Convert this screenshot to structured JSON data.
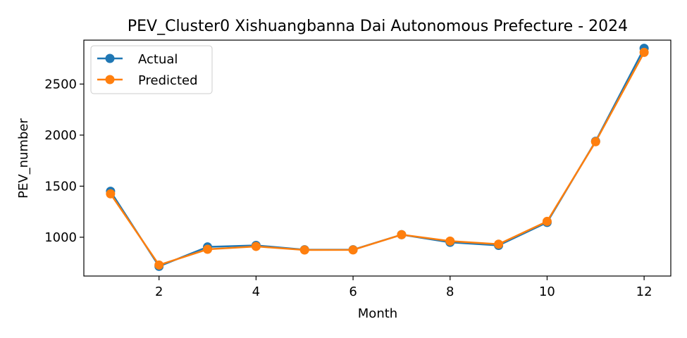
{
  "chart_data": {
    "type": "line",
    "title": "PEV_Cluster0 Xishuangbanna Dai Autonomous Prefecture - 2024",
    "xlabel": "Month",
    "ylabel": "PEV_number",
    "x": [
      1,
      2,
      3,
      4,
      5,
      6,
      7,
      8,
      9,
      10,
      11,
      12
    ],
    "xlim": [
      0.45,
      12.55
    ],
    "ylim": [
      620,
      2930
    ],
    "xticks": [
      2,
      4,
      6,
      8,
      10,
      12
    ],
    "yticks": [
      1000,
      1500,
      2000,
      2500
    ],
    "grid": false,
    "legend_position": "upper-left",
    "series": [
      {
        "name": "Actual",
        "color": "#1f77b4",
        "values": [
          1450,
          715,
          905,
          920,
          878,
          878,
          1025,
          950,
          920,
          1145,
          1940,
          2850
        ]
      },
      {
        "name": "Predicted",
        "color": "#ff7f0e",
        "values": [
          1425,
          728,
          882,
          910,
          875,
          876,
          1025,
          962,
          932,
          1155,
          1935,
          2810
        ]
      }
    ]
  }
}
